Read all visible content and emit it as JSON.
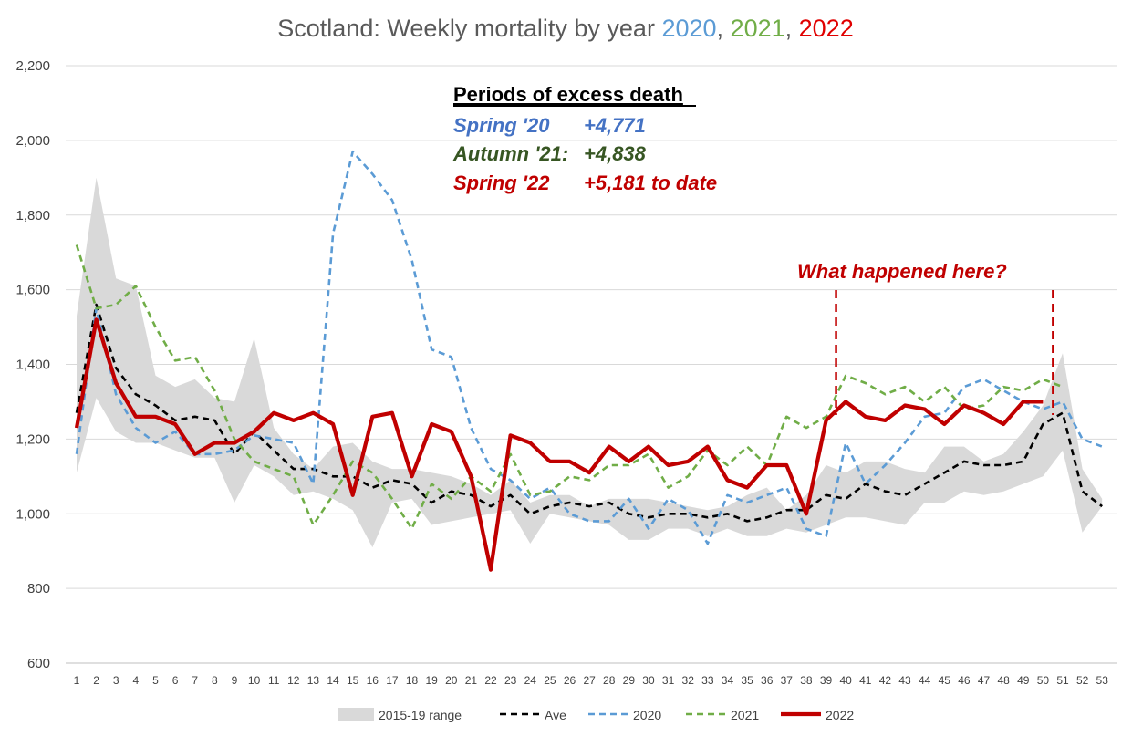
{
  "chart_data": {
    "type": "line",
    "title": {
      "prefix": "Scotland: Weekly mortality by year ",
      "y2020": "2020",
      "sep1": ", ",
      "y2021": "2021",
      "sep2": ", ",
      "y2022": "2022"
    },
    "ylim": [
      600,
      2200
    ],
    "y_ticks": [
      600,
      800,
      1000,
      1200,
      1400,
      1600,
      1800,
      2000,
      2200
    ],
    "y_tick_labels": [
      "600",
      "800",
      "1,000",
      "1,200",
      "1,400",
      "1,600",
      "1,800",
      "2,000",
      "2,200"
    ],
    "x": [
      1,
      2,
      3,
      4,
      5,
      6,
      7,
      8,
      9,
      10,
      11,
      12,
      13,
      14,
      15,
      16,
      17,
      18,
      19,
      20,
      21,
      22,
      23,
      24,
      25,
      26,
      27,
      28,
      29,
      30,
      31,
      32,
      33,
      34,
      35,
      36,
      37,
      38,
      39,
      40,
      41,
      42,
      43,
      44,
      45,
      46,
      47,
      48,
      49,
      50,
      51,
      52,
      53
    ],
    "x_tick_labels": [
      "1",
      "2",
      "3",
      "4",
      "5",
      "6",
      "7",
      "8",
      "9",
      "10",
      "11",
      "12",
      "13",
      "14",
      "15",
      "16",
      "17",
      "18",
      "19",
      "20",
      "21",
      "22",
      "23",
      "24",
      "25",
      "26",
      "27",
      "28",
      "29",
      "30",
      "31",
      "32",
      "33",
      "34",
      "35",
      "36",
      "37",
      "38",
      "39",
      "40",
      "41",
      "42",
      "43",
      "44",
      "45",
      "46",
      "47",
      "48",
      "49",
      "50",
      "51",
      "52",
      "53"
    ],
    "range_2015_19": {
      "name": "2015-19 range",
      "upper": [
        1530,
        1900,
        1630,
        1610,
        1370,
        1340,
        1360,
        1310,
        1300,
        1470,
        1230,
        1160,
        1120,
        1180,
        1190,
        1140,
        1120,
        1120,
        1110,
        1100,
        1080,
        1050,
        1090,
        1030,
        1050,
        1050,
        1020,
        1040,
        1040,
        1040,
        1030,
        1020,
        1010,
        1020,
        1050,
        1070,
        1010,
        1050,
        1130,
        1110,
        1140,
        1140,
        1120,
        1110,
        1180,
        1180,
        1140,
        1160,
        1220,
        1290,
        1430,
        1120,
        1040
      ],
      "lower": [
        1110,
        1310,
        1220,
        1190,
        1190,
        1170,
        1150,
        1150,
        1030,
        1130,
        1100,
        1050,
        1060,
        1040,
        1010,
        910,
        1030,
        1040,
        970,
        980,
        990,
        1000,
        1010,
        920,
        1000,
        990,
        980,
        970,
        930,
        930,
        960,
        960,
        940,
        960,
        940,
        940,
        960,
        950,
        970,
        990,
        990,
        980,
        970,
        1030,
        1030,
        1060,
        1050,
        1060,
        1080,
        1100,
        1170,
        950,
        1020
      ]
    },
    "series": [
      {
        "name": "Ave",
        "color": "#000000",
        "dash": "7,5",
        "width": 2.6,
        "values": [
          1270,
          1560,
          1390,
          1320,
          1290,
          1250,
          1260,
          1250,
          1160,
          1220,
          1170,
          1120,
          1120,
          1100,
          1100,
          1070,
          1090,
          1080,
          1030,
          1060,
          1050,
          1020,
          1050,
          1000,
          1020,
          1030,
          1020,
          1030,
          1000,
          990,
          1000,
          1000,
          990,
          1000,
          980,
          990,
          1010,
          1010,
          1050,
          1040,
          1080,
          1060,
          1050,
          1080,
          1110,
          1140,
          1130,
          1130,
          1140,
          1240,
          1270,
          1060,
          1020
        ]
      },
      {
        "name": "2020",
        "color": "#5b9bd5",
        "dash": "7,5",
        "width": 2.6,
        "values": [
          1160,
          1550,
          1320,
          1230,
          1190,
          1220,
          1160,
          1160,
          1170,
          1210,
          1200,
          1190,
          1080,
          1750,
          1970,
          1910,
          1840,
          1680,
          1440,
          1420,
          1230,
          1120,
          1090,
          1040,
          1070,
          1000,
          980,
          980,
          1040,
          960,
          1040,
          1010,
          920,
          1050,
          1030,
          1050,
          1070,
          960,
          940,
          1190,
          1080,
          1130,
          1190,
          1260,
          1270,
          1340,
          1360,
          1330,
          1300,
          1280,
          1300,
          1200,
          1180
        ]
      },
      {
        "name": "2021",
        "color": "#70ad47",
        "dash": "7,5",
        "width": 2.6,
        "values": [
          1720,
          1550,
          1560,
          1610,
          1500,
          1410,
          1420,
          1330,
          1200,
          1140,
          1120,
          1100,
          970,
          1050,
          1140,
          1110,
          1040,
          960,
          1080,
          1040,
          1100,
          1060,
          1160,
          1050,
          1060,
          1100,
          1090,
          1130,
          1130,
          1160,
          1070,
          1100,
          1170,
          1130,
          1180,
          1130,
          1260,
          1230,
          1260,
          1370,
          1350,
          1320,
          1340,
          1300,
          1340,
          1280,
          1290,
          1340,
          1330,
          1360,
          1340,
          null,
          null
        ]
      },
      {
        "name": "2022",
        "color": "#c00000",
        "dash": "",
        "width": 4.2,
        "values": [
          1230,
          1520,
          1350,
          1260,
          1260,
          1240,
          1160,
          1190,
          1190,
          1220,
          1270,
          1250,
          1270,
          1240,
          1050,
          1260,
          1270,
          1100,
          1240,
          1220,
          1100,
          850,
          1210,
          1190,
          1140,
          1140,
          1110,
          1180,
          1140,
          1180,
          1130,
          1140,
          1180,
          1090,
          1070,
          1130,
          1130,
          1000,
          1250,
          1300,
          1260,
          1250,
          1290,
          1280,
          1240,
          1290,
          1270,
          1240,
          1300,
          1300,
          null,
          null,
          null
        ]
      }
    ],
    "legend": {
      "range": "2015-19 range",
      "ave": "Ave",
      "y2020": "2020",
      "y2021": "2021",
      "y2022": "2022",
      "position": "bottom"
    },
    "annotations": {
      "heading": "Periods of excess death",
      "rows": [
        {
          "label": "Spring '20",
          "value": "+4,771",
          "color": "#4472c4"
        },
        {
          "label": "Autumn '21:",
          "value": "+4,838",
          "color": "#375623"
        },
        {
          "label": "Spring '22",
          "value": "+5,181 to date",
          "color": "#c00000"
        }
      ],
      "question": "What happened here?",
      "question_color": "#c00000",
      "marker_weeks": [
        39,
        50
      ]
    },
    "colors": {
      "title_main": "#595959",
      "y2020": "#5b9bd5",
      "y2021": "#70ad47",
      "y2022": "#e00000",
      "range_fill": "#d9d9d9",
      "grid": "#d9d9d9"
    }
  }
}
